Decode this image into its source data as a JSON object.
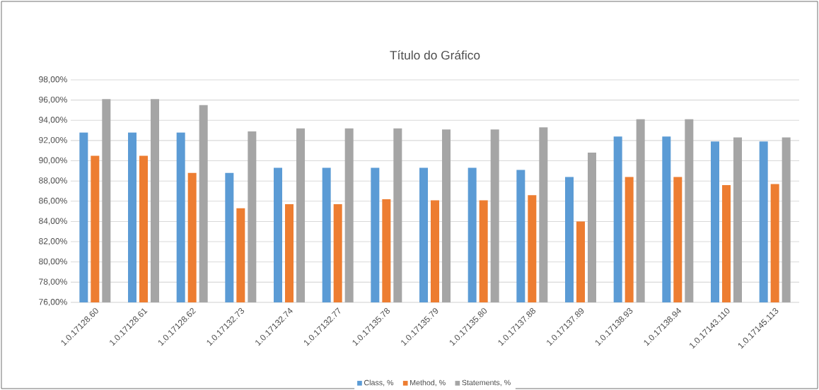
{
  "chart_data": {
    "type": "bar",
    "title": "Título do Gráfico",
    "categories": [
      "1.0.17128.60",
      "1.0.17128.61",
      "1.0.17128.62",
      "1.0.17132.73",
      "1.0.17132.74",
      "1.0.17132.77",
      "1.0.17135.78",
      "1.0.17135.79",
      "1.0.17135.80",
      "1.0.17137.88",
      "1.0.17137.89",
      "1.0.17138.93",
      "1.0.17138.94",
      "1.0.17143.110",
      "1.0.17145.113"
    ],
    "series": [
      {
        "name": "Class, %",
        "color": "#5b9bd5",
        "values": [
          92.8,
          92.8,
          92.8,
          88.8,
          89.3,
          89.3,
          89.3,
          89.3,
          89.3,
          89.1,
          88.4,
          92.4,
          92.4,
          91.9,
          91.9
        ]
      },
      {
        "name": "Method, %",
        "color": "#ed7d31",
        "values": [
          90.5,
          90.5,
          88.8,
          85.3,
          85.7,
          85.7,
          86.2,
          86.1,
          86.1,
          86.6,
          84.0,
          88.4,
          88.4,
          87.6,
          87.7
        ]
      },
      {
        "name": "Statements, %",
        "color": "#a5a5a5",
        "values": [
          96.1,
          96.1,
          95.5,
          92.9,
          93.2,
          93.2,
          93.2,
          93.1,
          93.1,
          93.3,
          90.8,
          94.1,
          94.1,
          92.3,
          92.3
        ]
      }
    ],
    "ylim": [
      76,
      98
    ],
    "yticks": [
      {
        "value": 76,
        "label": "76,00%"
      },
      {
        "value": 78,
        "label": "78,00%"
      },
      {
        "value": 80,
        "label": "80,00%"
      },
      {
        "value": 82,
        "label": "82,00%"
      },
      {
        "value": 84,
        "label": "84,00%"
      },
      {
        "value": 86,
        "label": "86,00%"
      },
      {
        "value": 88,
        "label": "88,00%"
      },
      {
        "value": 90,
        "label": "90,00%"
      },
      {
        "value": 92,
        "label": "92,00%"
      },
      {
        "value": 94,
        "label": "94,00%"
      },
      {
        "value": 96,
        "label": "96,00%"
      },
      {
        "value": 98,
        "label": "98,00%"
      }
    ],
    "grid": "y",
    "legend": "bottom"
  }
}
